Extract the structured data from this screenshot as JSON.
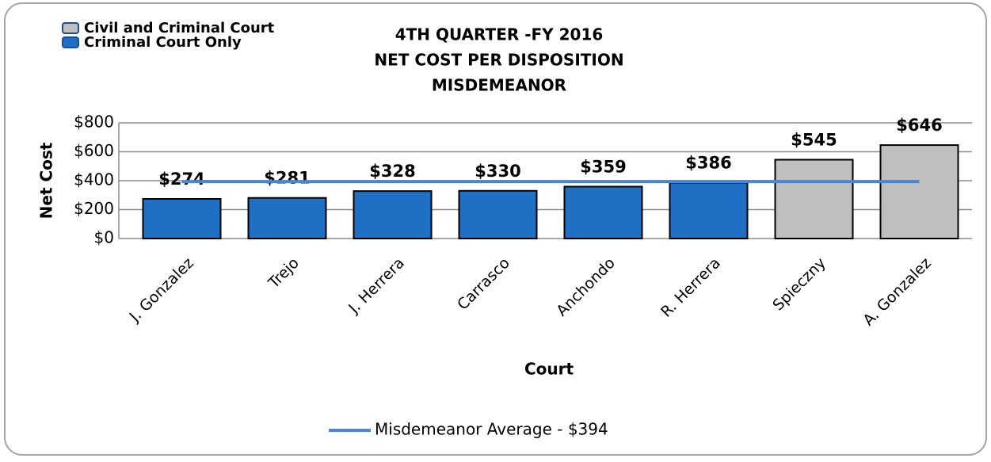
{
  "chart_data": {
    "type": "bar",
    "title": [
      "4TH QUARTER -FY 2016",
      "NET COST PER DISPOSITION",
      "MISDEMEANOR"
    ],
    "x_label": "Court",
    "y_label": "Net Cost",
    "categories": [
      "J. Gonzalez",
      "Trejo",
      "J. Herrera",
      "Carrasco",
      "Anchondo",
      "R. Herrera",
      "Spieczny",
      "A. Gonzalez"
    ],
    "series": [
      {
        "name": "Civil and Criminal Court",
        "color": "#bfbfbf",
        "values": [
          null,
          null,
          null,
          null,
          null,
          null,
          545,
          646
        ],
        "value_labels": [
          null,
          null,
          null,
          null,
          null,
          null,
          "$545",
          "$646"
        ]
      },
      {
        "name": "Criminal Court Only",
        "color": "#1f6fc5",
        "values": [
          274,
          281,
          328,
          330,
          359,
          386,
          null,
          null
        ],
        "value_labels": [
          "$274",
          "$281",
          "$328",
          "$330",
          "$359",
          "$386",
          null,
          null
        ]
      }
    ],
    "average": {
      "name": "Misdemeanor Average - $394",
      "value": 394,
      "color": "#4a86d8"
    },
    "ylim": [
      0,
      800
    ],
    "yticks": [
      {
        "value": 0,
        "label": "$0"
      },
      {
        "value": 200,
        "label": "$200"
      },
      {
        "value": 400,
        "label": "$400"
      },
      {
        "value": 600,
        "label": "$600"
      },
      {
        "value": 800,
        "label": "$800"
      }
    ],
    "grid": true
  }
}
